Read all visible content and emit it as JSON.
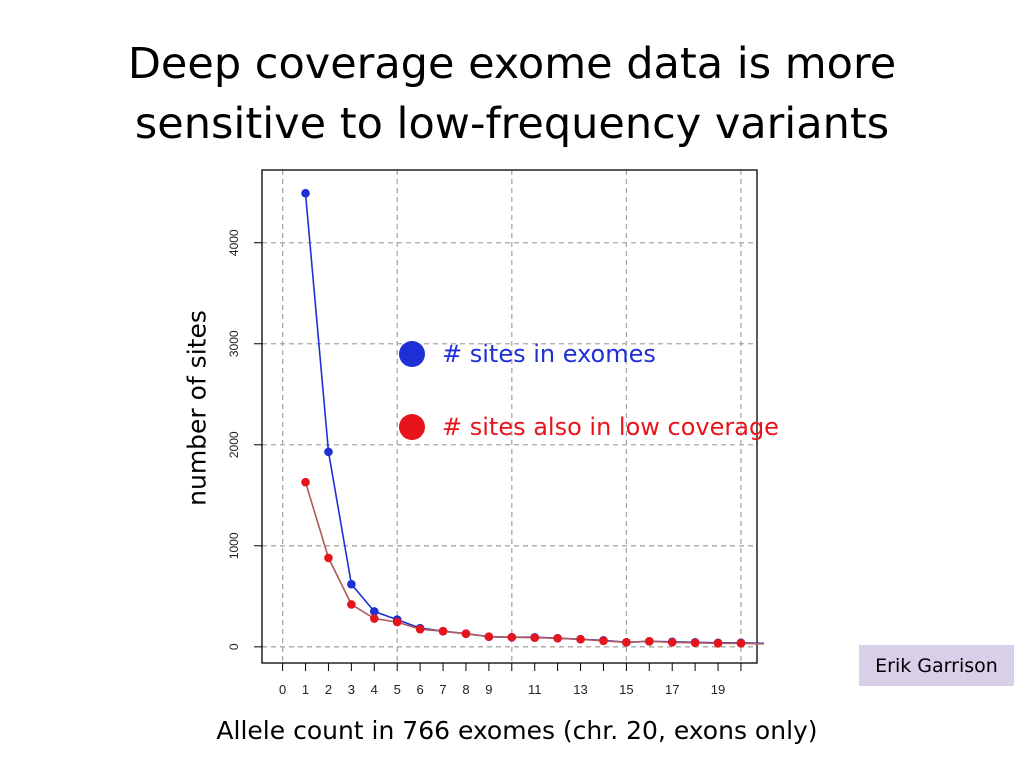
{
  "slide": {
    "title_line1": "Deep coverage exome data is more",
    "title_line2": "sensitive to low-frequency variants",
    "credit": "Erik Garrison"
  },
  "colors": {
    "exomes": "#1f2fd6",
    "low_coverage": "#e8141b",
    "low_coverage_line": "#b05a5a",
    "grid": "#a8a8a8"
  },
  "chart_data": {
    "type": "line",
    "xlabel": "Allele count in 766 exomes (chr. 20, exons only)",
    "ylabel": "number of sites",
    "x_tick_labels": [
      "0",
      "1",
      "2",
      "3",
      "4",
      "5",
      "6",
      "7",
      "8",
      "9",
      "11",
      "13",
      "15",
      "17",
      "19"
    ],
    "y_tick_labels": [
      "0",
      "1000",
      "2000",
      "3000",
      "4000"
    ],
    "xlim": [
      -0.9,
      20.7
    ],
    "ylim": [
      -160,
      4720
    ],
    "x_grid": [
      0,
      5,
      10,
      15,
      20
    ],
    "grid": true,
    "legend_position": "center",
    "x": [
      1,
      2,
      3,
      4,
      5,
      6,
      7,
      8,
      9,
      10,
      11,
      12,
      13,
      14,
      15,
      16,
      17,
      18,
      19,
      20,
      21
    ],
    "series": [
      {
        "name": "# sites in exomes",
        "color": "#1f2fd6",
        "values": [
          4490,
          1930,
          620,
          350,
          270,
          185,
          155,
          130,
          100,
          95,
          95,
          85,
          75,
          65,
          45,
          55,
          50,
          45,
          40,
          40,
          35
        ]
      },
      {
        "name": "# sites also in low coverage",
        "color": "#e8141b",
        "values": [
          1630,
          880,
          420,
          280,
          245,
          175,
          155,
          130,
          100,
          95,
          90,
          85,
          75,
          60,
          45,
          55,
          45,
          40,
          35,
          35,
          30
        ]
      }
    ]
  }
}
